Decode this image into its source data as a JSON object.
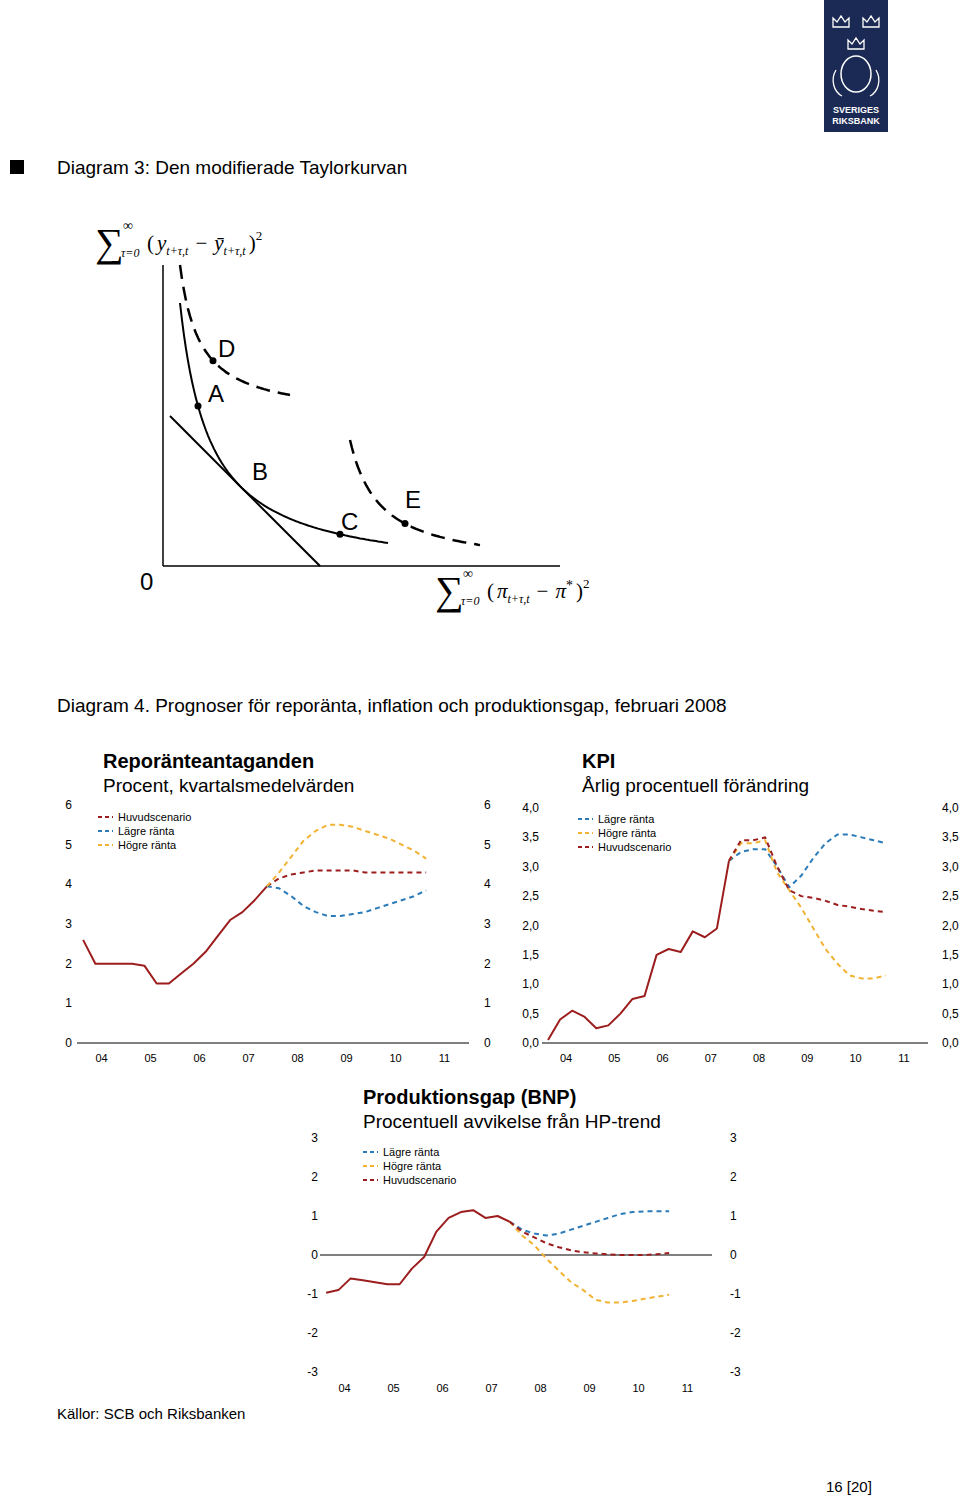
{
  "page": {
    "logo": [
      "SVERIGES",
      "RIKSBANK"
    ],
    "diagram3_title": "Diagram 3: Den modifierade Taylorkurvan",
    "diagram4_title": "Diagram 4. Prognoser för reporänta, inflation och produktionsgap, februari 2008",
    "source": "Källor: SCB och Riksbanken",
    "page_number": "16 [20]"
  },
  "diagram3": {
    "origin": "0",
    "points": [
      "D",
      "A",
      "B",
      "C",
      "E"
    ],
    "y_axis_label": {
      "sum": "∑",
      "upper": "∞",
      "lower": "τ=0",
      "open": "(",
      "var1": "y",
      "sub1": "t+τ,t",
      "minus": "−",
      "var2": "ȳ",
      "sub2": "t+τ,t",
      "close": ")",
      "power": "2"
    },
    "x_axis_label": {
      "sum": "∑",
      "upper": "∞",
      "lower": "τ=0",
      "open": "(",
      "var1": "π",
      "sub1": "t+τ,t",
      "minus": "−",
      "var2": "π",
      "sup2": "*",
      "close": ")",
      "power": "2"
    }
  },
  "chart_data": [
    {
      "type": "line",
      "title": "Reporänteantaganden",
      "subtitle": "Procent, kvartalsmedelvärden",
      "categories": [
        "04",
        null,
        null,
        null,
        "05",
        null,
        null,
        null,
        "06",
        null,
        null,
        null,
        "07",
        null,
        null,
        null,
        "08",
        null,
        null,
        null,
        "09",
        null,
        null,
        null,
        "10",
        null,
        null,
        null,
        "11",
        null,
        null,
        null
      ],
      "series": [
        {
          "color": "#9c1d1d",
          "line_style": "solid",
          "values": [
            2.6,
            2.0,
            2.0,
            2.0,
            2.0,
            1.95,
            1.5,
            1.5,
            1.75,
            2.0,
            2.3,
            2.7,
            3.1,
            3.3,
            3.6,
            3.95,
            null,
            null,
            null,
            null,
            null,
            null,
            null,
            null,
            null,
            null,
            null,
            null,
            null,
            null,
            null,
            null
          ]
        },
        {
          "name": "Huvudscenario",
          "color": "#9c1d1d",
          "line_style": "dashed",
          "values": [
            null,
            null,
            null,
            null,
            null,
            null,
            null,
            null,
            null,
            null,
            null,
            null,
            null,
            null,
            null,
            3.95,
            4.15,
            4.25,
            4.3,
            4.35,
            4.35,
            4.35,
            4.35,
            4.3,
            4.3,
            4.3,
            4.3,
            4.3,
            4.3,
            null,
            null,
            null
          ]
        },
        {
          "name": "Lägre ränta",
          "color": "#2b7bb9",
          "line_style": "dashed",
          "values": [
            null,
            null,
            null,
            null,
            null,
            null,
            null,
            null,
            null,
            null,
            null,
            null,
            null,
            null,
            null,
            3.95,
            3.9,
            3.7,
            3.45,
            3.3,
            3.2,
            3.2,
            3.25,
            3.3,
            3.4,
            3.5,
            3.6,
            3.7,
            3.85,
            null,
            null,
            null
          ]
        },
        {
          "name": "Högre ränta",
          "color": "#f2b233",
          "line_style": "dashed",
          "values": [
            null,
            null,
            null,
            null,
            null,
            null,
            null,
            null,
            null,
            null,
            null,
            null,
            null,
            null,
            null,
            3.95,
            4.3,
            4.7,
            5.1,
            5.35,
            5.5,
            5.5,
            5.45,
            5.35,
            5.25,
            5.15,
            5.0,
            4.85,
            4.65,
            null,
            null,
            null
          ]
        }
      ],
      "ylim": [
        0,
        6
      ],
      "yticks": [
        0,
        1,
        2,
        3,
        4,
        5,
        6
      ],
      "y2lim": [
        0,
        6
      ],
      "y2ticks": [
        0,
        1,
        2,
        3,
        4,
        5,
        6
      ],
      "legend": "top-left"
    },
    {
      "type": "line",
      "title": "KPI",
      "subtitle": "Årlig procentuell förändring",
      "categories": [
        "04",
        null,
        null,
        null,
        "05",
        null,
        null,
        null,
        "06",
        null,
        null,
        null,
        "07",
        null,
        null,
        null,
        "08",
        null,
        null,
        null,
        "09",
        null,
        null,
        null,
        "10",
        null,
        null,
        null,
        "11",
        null,
        null,
        null
      ],
      "series": [
        {
          "color": "#9c1d1d",
          "line_style": "solid",
          "values": [
            0.05,
            0.4,
            0.55,
            0.45,
            0.25,
            0.3,
            0.5,
            0.75,
            0.8,
            1.5,
            1.6,
            1.55,
            1.9,
            1.8,
            1.95,
            3.1,
            null,
            null,
            null,
            null,
            null,
            null,
            null,
            null,
            null,
            null,
            null,
            null,
            null,
            null,
            null,
            null
          ]
        },
        {
          "name": "Lägre ränta",
          "color": "#2b7bb9",
          "line_style": "dashed",
          "values": [
            null,
            null,
            null,
            null,
            null,
            null,
            null,
            null,
            null,
            null,
            null,
            null,
            null,
            null,
            null,
            3.1,
            3.25,
            3.3,
            3.3,
            3.0,
            2.65,
            2.85,
            3.15,
            3.4,
            3.55,
            3.55,
            3.5,
            3.45,
            3.4,
            null,
            null,
            null
          ]
        },
        {
          "name": "Högre ränta",
          "color": "#f2b233",
          "line_style": "dashed",
          "values": [
            null,
            null,
            null,
            null,
            null,
            null,
            null,
            null,
            null,
            null,
            null,
            null,
            null,
            null,
            null,
            3.1,
            3.4,
            3.4,
            3.45,
            2.9,
            2.6,
            2.3,
            1.95,
            1.6,
            1.35,
            1.15,
            1.1,
            1.1,
            1.15,
            null,
            null,
            null
          ]
        },
        {
          "name": "Huvudscenario",
          "color": "#9c1d1d",
          "line_style": "dashed",
          "values": [
            null,
            null,
            null,
            null,
            null,
            null,
            null,
            null,
            null,
            null,
            null,
            null,
            null,
            null,
            null,
            3.1,
            3.45,
            3.45,
            3.5,
            3.0,
            2.6,
            2.5,
            2.47,
            2.42,
            2.35,
            2.32,
            2.28,
            2.25,
            2.23,
            null,
            null,
            null
          ]
        }
      ],
      "ylim": [
        0,
        4
      ],
      "yticks": [
        {
          "value": 0,
          "label": "0,0"
        },
        {
          "value": 0.5,
          "label": "0,5"
        },
        {
          "value": 1,
          "label": "1,0"
        },
        {
          "value": 1.5,
          "label": "1,5"
        },
        {
          "value": 2,
          "label": "2,0"
        },
        {
          "value": 2.5,
          "label": "2,5"
        },
        {
          "value": 3,
          "label": "3,0"
        },
        {
          "value": 3.5,
          "label": "3,5"
        },
        {
          "value": 4,
          "label": "4,0"
        }
      ],
      "y2lim": [
        0,
        4
      ],
      "y2ticks": [
        {
          "value": 0,
          "label": "0,0"
        },
        {
          "value": 0.5,
          "label": "0,5"
        },
        {
          "value": 1,
          "label": "1,0"
        },
        {
          "value": 1.5,
          "label": "1,5"
        },
        {
          "value": 2,
          "label": "2,0"
        },
        {
          "value": 2.5,
          "label": "2,5"
        },
        {
          "value": 3,
          "label": "3,0"
        },
        {
          "value": 3.5,
          "label": "3,5"
        },
        {
          "value": 4,
          "label": "4,0"
        }
      ],
      "legend": "top-left"
    },
    {
      "type": "line",
      "title": "Produktionsgap (BNP)",
      "subtitle": "Procentuell avvikelse från HP-trend",
      "categories": [
        "04",
        null,
        null,
        null,
        "05",
        null,
        null,
        null,
        "06",
        null,
        null,
        null,
        "07",
        null,
        null,
        null,
        "08",
        null,
        null,
        null,
        "09",
        null,
        null,
        null,
        "10",
        null,
        null,
        null,
        "11",
        null,
        null,
        null
      ],
      "series": [
        {
          "color": "#9c1d1d",
          "line_style": "solid",
          "values": [
            -0.97,
            -0.9,
            -0.6,
            -0.65,
            -0.7,
            -0.75,
            -0.75,
            -0.35,
            -0.05,
            0.6,
            0.95,
            1.1,
            1.15,
            0.95,
            1.0,
            0.85,
            null,
            null,
            null,
            null,
            null,
            null,
            null,
            null,
            null,
            null,
            null,
            null,
            null,
            null,
            null,
            null
          ]
        },
        {
          "name": "Lägre ränta",
          "color": "#2b7bb9",
          "line_style": "dashed",
          "values": [
            null,
            null,
            null,
            null,
            null,
            null,
            null,
            null,
            null,
            null,
            null,
            null,
            null,
            null,
            null,
            0.85,
            0.65,
            0.55,
            0.5,
            0.55,
            0.65,
            0.75,
            0.85,
            0.95,
            1.05,
            1.1,
            1.12,
            1.12,
            1.12,
            null,
            null,
            null
          ]
        },
        {
          "name": "Högre ränta",
          "color": "#f2b233",
          "line_style": "dashed",
          "values": [
            null,
            null,
            null,
            null,
            null,
            null,
            null,
            null,
            null,
            null,
            null,
            null,
            null,
            null,
            null,
            0.85,
            0.5,
            0.25,
            -0.1,
            -0.4,
            -0.7,
            -0.9,
            -1.15,
            -1.22,
            -1.22,
            -1.18,
            -1.12,
            -1.07,
            -1.02,
            null,
            null,
            null
          ]
        },
        {
          "name": "Huvudscenario",
          "color": "#9c1d1d",
          "line_style": "dashed",
          "values": [
            null,
            null,
            null,
            null,
            null,
            null,
            null,
            null,
            null,
            null,
            null,
            null,
            null,
            null,
            null,
            0.85,
            0.6,
            0.45,
            0.3,
            0.2,
            0.12,
            0.07,
            0.04,
            0.02,
            0.0,
            0.0,
            0.0,
            0.02,
            0.05,
            null,
            null,
            null
          ]
        }
      ],
      "ylim": [
        -3,
        3
      ],
      "yticks": [
        -3,
        -2,
        -1,
        0,
        1,
        2,
        3
      ],
      "y2lim": [
        -3,
        3
      ],
      "y2ticks": [
        -3,
        -2,
        -1,
        0,
        1,
        2,
        3
      ],
      "legend": "top-left"
    }
  ]
}
